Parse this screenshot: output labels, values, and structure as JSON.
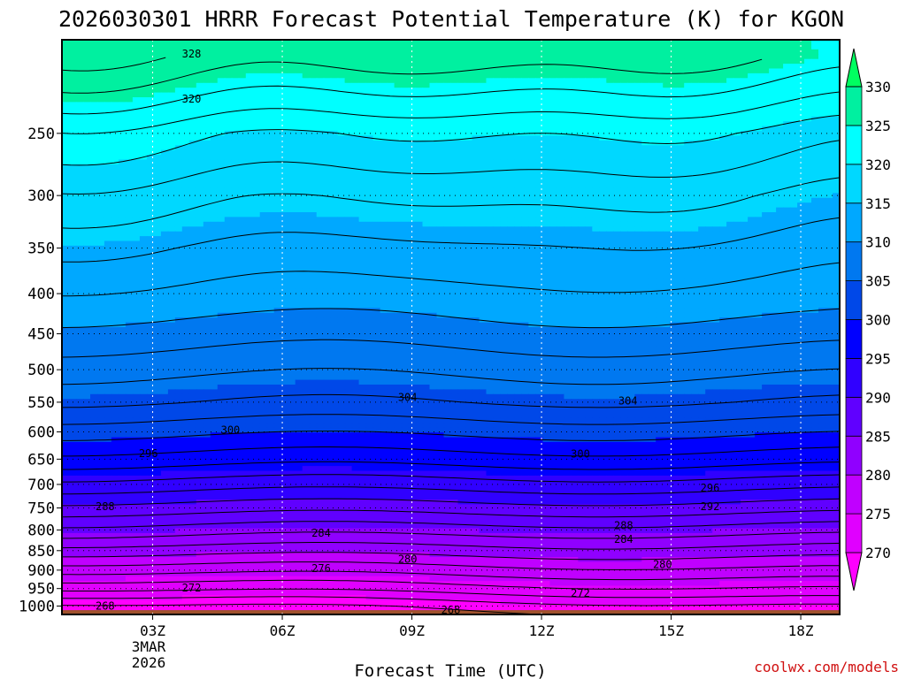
{
  "chart_data": {
    "type": "heatmap",
    "title": "2026030301 HRRR Forecast Potential Temperature (K) for KGON",
    "xlabel": "Forecast Time (UTC)",
    "ylabel": "",
    "credit": "coolwx.com/models",
    "x_range_hours": [
      0.9,
      18.9
    ],
    "y_range_hpa": [
      190,
      1025
    ],
    "x_ticks": [
      {
        "hour": 3,
        "label": "03Z"
      },
      {
        "hour": 6,
        "label": "06Z"
      },
      {
        "hour": 9,
        "label": "09Z"
      },
      {
        "hour": 12,
        "label": "12Z"
      },
      {
        "hour": 15,
        "label": "15Z"
      },
      {
        "hour": 18,
        "label": "18Z"
      }
    ],
    "x_date_lines": [
      "3MAR",
      "2026"
    ],
    "y_ticks": [
      250,
      300,
      350,
      400,
      450,
      500,
      550,
      600,
      650,
      700,
      750,
      800,
      850,
      900,
      950,
      1000
    ],
    "colorbar": {
      "levels": [
        270,
        275,
        280,
        285,
        290,
        295,
        300,
        305,
        310,
        315,
        320,
        325,
        330
      ],
      "labels": [
        "270",
        "275",
        "280",
        "285",
        "290",
        "295",
        "300",
        "305",
        "310",
        "315",
        "320",
        "325",
        "330"
      ],
      "colors": [
        "#ff00ff",
        "#e000ff",
        "#c000ff",
        "#9000ff",
        "#6000ff",
        "#3000ff",
        "#0000ff",
        "#0048e8",
        "#0078f0",
        "#00a8ff",
        "#00d8ff",
        "#00ffff",
        "#00f0a0",
        "#00ff60"
      ]
    },
    "profile_pressure_hpa": [
      1025,
      1000,
      950,
      900,
      850,
      800,
      750,
      700,
      650,
      600,
      550,
      500,
      450,
      400,
      350,
      300,
      250,
      200
    ],
    "profile_theta_k": [
      267,
      268.5,
      273,
      277,
      281,
      285,
      289,
      293,
      297,
      300.5,
      304,
      306.5,
      309,
      311.5,
      314,
      317,
      321,
      328
    ],
    "contour_labels": [
      {
        "text": "328",
        "hour": 3.9,
        "p": 198
      },
      {
        "text": "320",
        "hour": 3.9,
        "p": 226
      },
      {
        "text": "304",
        "hour": 8.9,
        "p": 542
      },
      {
        "text": "304",
        "hour": 14.0,
        "p": 548
      },
      {
        "text": "300",
        "hour": 4.8,
        "p": 597
      },
      {
        "text": "300",
        "hour": 12.9,
        "p": 640
      },
      {
        "text": "296",
        "hour": 2.9,
        "p": 639
      },
      {
        "text": "296",
        "hour": 15.9,
        "p": 707
      },
      {
        "text": "292",
        "hour": 15.9,
        "p": 747
      },
      {
        "text": "288",
        "hour": 1.9,
        "p": 747
      },
      {
        "text": "288",
        "hour": 13.9,
        "p": 790
      },
      {
        "text": "284",
        "hour": 6.9,
        "p": 807
      },
      {
        "text": "284",
        "hour": 13.9,
        "p": 822
      },
      {
        "text": "280",
        "hour": 8.9,
        "p": 872
      },
      {
        "text": "280",
        "hour": 14.8,
        "p": 885
      },
      {
        "text": "276",
        "hour": 6.9,
        "p": 896
      },
      {
        "text": "272",
        "hour": 3.9,
        "p": 948
      },
      {
        "text": "272",
        "hour": 12.9,
        "p": 963
      },
      {
        "text": "268",
        "hour": 1.9,
        "p": 1000
      },
      {
        "text": "268",
        "hour": 9.9,
        "p": 1012
      }
    ]
  }
}
